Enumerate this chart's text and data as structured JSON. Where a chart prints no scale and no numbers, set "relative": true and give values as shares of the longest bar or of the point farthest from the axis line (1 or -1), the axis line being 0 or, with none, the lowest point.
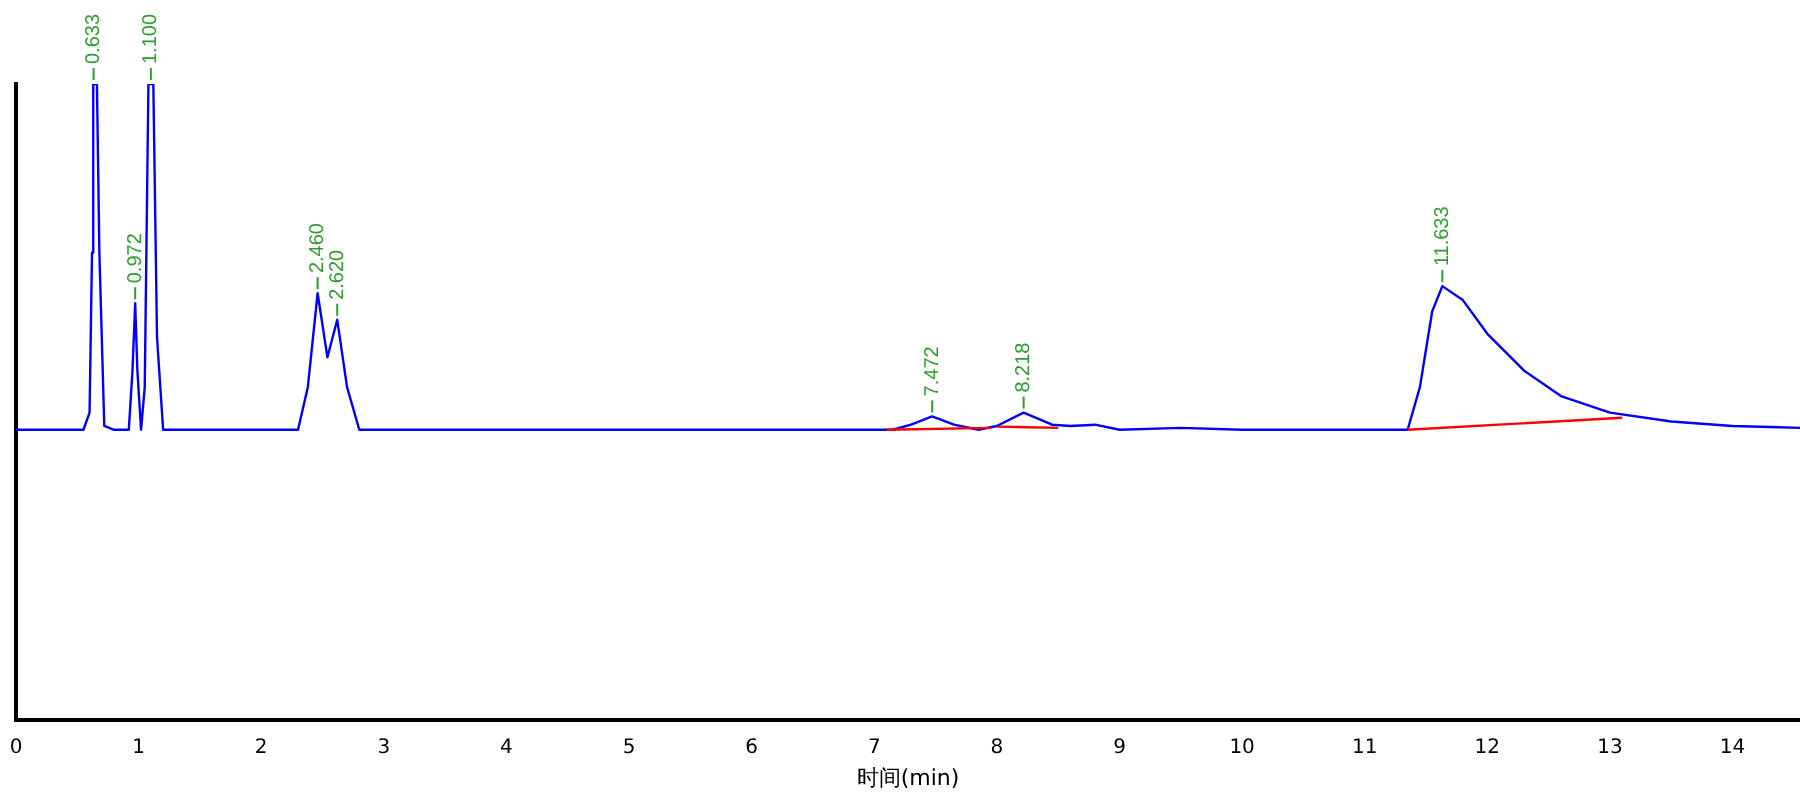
{
  "chart_data": {
    "type": "line",
    "xlabel": "时间(min)",
    "relative": true,
    "marker": "none",
    "xlim": [
      0,
      14.55
    ],
    "xticks": [
      0,
      1,
      2,
      3,
      4,
      5,
      6,
      7,
      8,
      9,
      10,
      11,
      12,
      13,
      14
    ],
    "x": [
      0,
      0.55,
      0.6,
      0.62,
      0.63,
      0.66,
      0.68,
      0.72,
      0.8,
      0.92,
      0.95,
      0.972,
      0.99,
      1.02,
      1.05,
      1.08,
      1.12,
      1.15,
      1.2,
      2.3,
      2.38,
      2.46,
      2.54,
      2.62,
      2.7,
      2.8,
      7.15,
      7.3,
      7.472,
      7.65,
      7.85,
      8.0,
      8.218,
      8.45,
      8.6,
      8.8,
      9.0,
      9.5,
      10,
      11.35,
      11.45,
      11.55,
      11.633,
      11.8,
      12,
      12.3,
      12.6,
      13,
      13.5,
      14,
      14.55
    ],
    "series": [
      {
        "color": "#0000ff",
        "values": [
          0.456,
          0.456,
          0.483,
          0.735,
          1,
          1,
          0.735,
          0.462,
          0.456,
          0.456,
          0.549,
          0.655,
          0.549,
          0.456,
          0.523,
          1,
          1,
          0.602,
          0.456,
          0.456,
          0.523,
          0.671,
          0.57,
          0.629,
          0.523,
          0.456,
          0.456,
          0.464,
          0.477,
          0.464,
          0.456,
          0.462,
          0.483,
          0.464,
          0.462,
          0.464,
          0.456,
          0.459,
          0.456,
          0.456,
          0.523,
          0.642,
          0.682,
          0.66,
          0.607,
          0.549,
          0.509,
          0.483,
          0.469,
          0.462,
          0.459
        ]
      },
      {
        "color": "#ff0000",
        "x": [
          7.1,
          7.95,
          7.96,
          8.0,
          8.5,
          8.51,
          11.35,
          13.1
        ],
        "values": [
          0.456,
          0.459,
          null,
          0.461,
          0.459,
          null,
          0.456,
          0.475
        ]
      }
    ],
    "annotations": [
      {
        "text": "0.633",
        "x": 0.633,
        "y": 1
      },
      {
        "text": "0.972",
        "x": 0.972,
        "y": 0.655
      },
      {
        "text": "1.100",
        "x": 1.1,
        "y": 1
      },
      {
        "text": "2.460",
        "x": 2.46,
        "y": 0.671
      },
      {
        "text": "2.620",
        "x": 2.62,
        "y": 0.629
      },
      {
        "text": "7.472",
        "x": 7.472,
        "y": 0.477
      },
      {
        "text": "8.218",
        "x": 8.218,
        "y": 0.483
      },
      {
        "text": "11.633",
        "x": 11.633,
        "y": 0.682
      }
    ]
  }
}
